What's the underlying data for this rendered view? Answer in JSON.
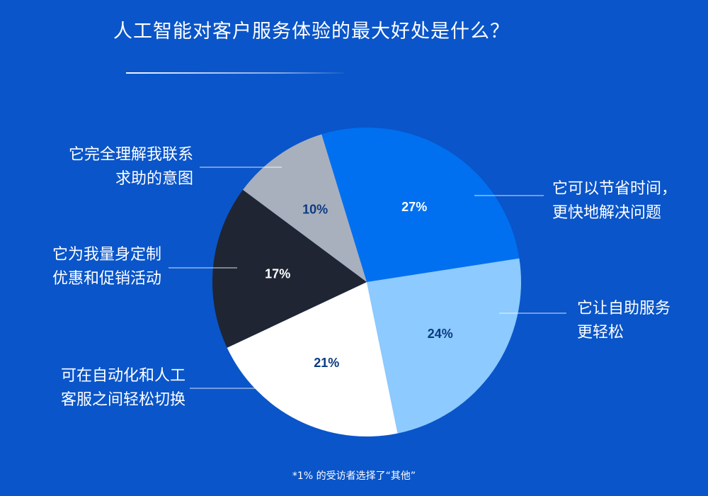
{
  "title": "人工智能对客户服务体验的最大好处是什么？",
  "footnote": "*1% 的受访者选择了“其他”",
  "chart_data": {
    "type": "pie",
    "title": "人工智能对客户服务体验的最大好处是什么？",
    "start_angle_deg": -17,
    "slices": [
      {
        "label": [
          "它可以节省时间，",
          "更快地解决问题"
        ],
        "value": 27,
        "value_label": "27%",
        "color": "#0070f0",
        "text_color": "#ffffff"
      },
      {
        "label": [
          "它让自助服务",
          "更轻松"
        ],
        "value": 24,
        "value_label": "24%",
        "color": "#8ccaff",
        "text_color": "#0b3a82"
      },
      {
        "label": [
          "可在自动化和人工",
          "客服之间轻松切换"
        ],
        "value": 21,
        "value_label": "21%",
        "color": "#ffffff",
        "text_color": "#0b3a82"
      },
      {
        "label": [
          "它为我量身定制",
          "优惠和促销活动"
        ],
        "value": 17,
        "value_label": "17%",
        "color": "#1f2533",
        "text_color": "#ffffff"
      },
      {
        "label": [
          "它完全理解我联系",
          "求助的意图"
        ],
        "value": 10,
        "value_label": "10%",
        "color": "#a9b0bd",
        "text_color": "#0b3a82"
      }
    ]
  }
}
